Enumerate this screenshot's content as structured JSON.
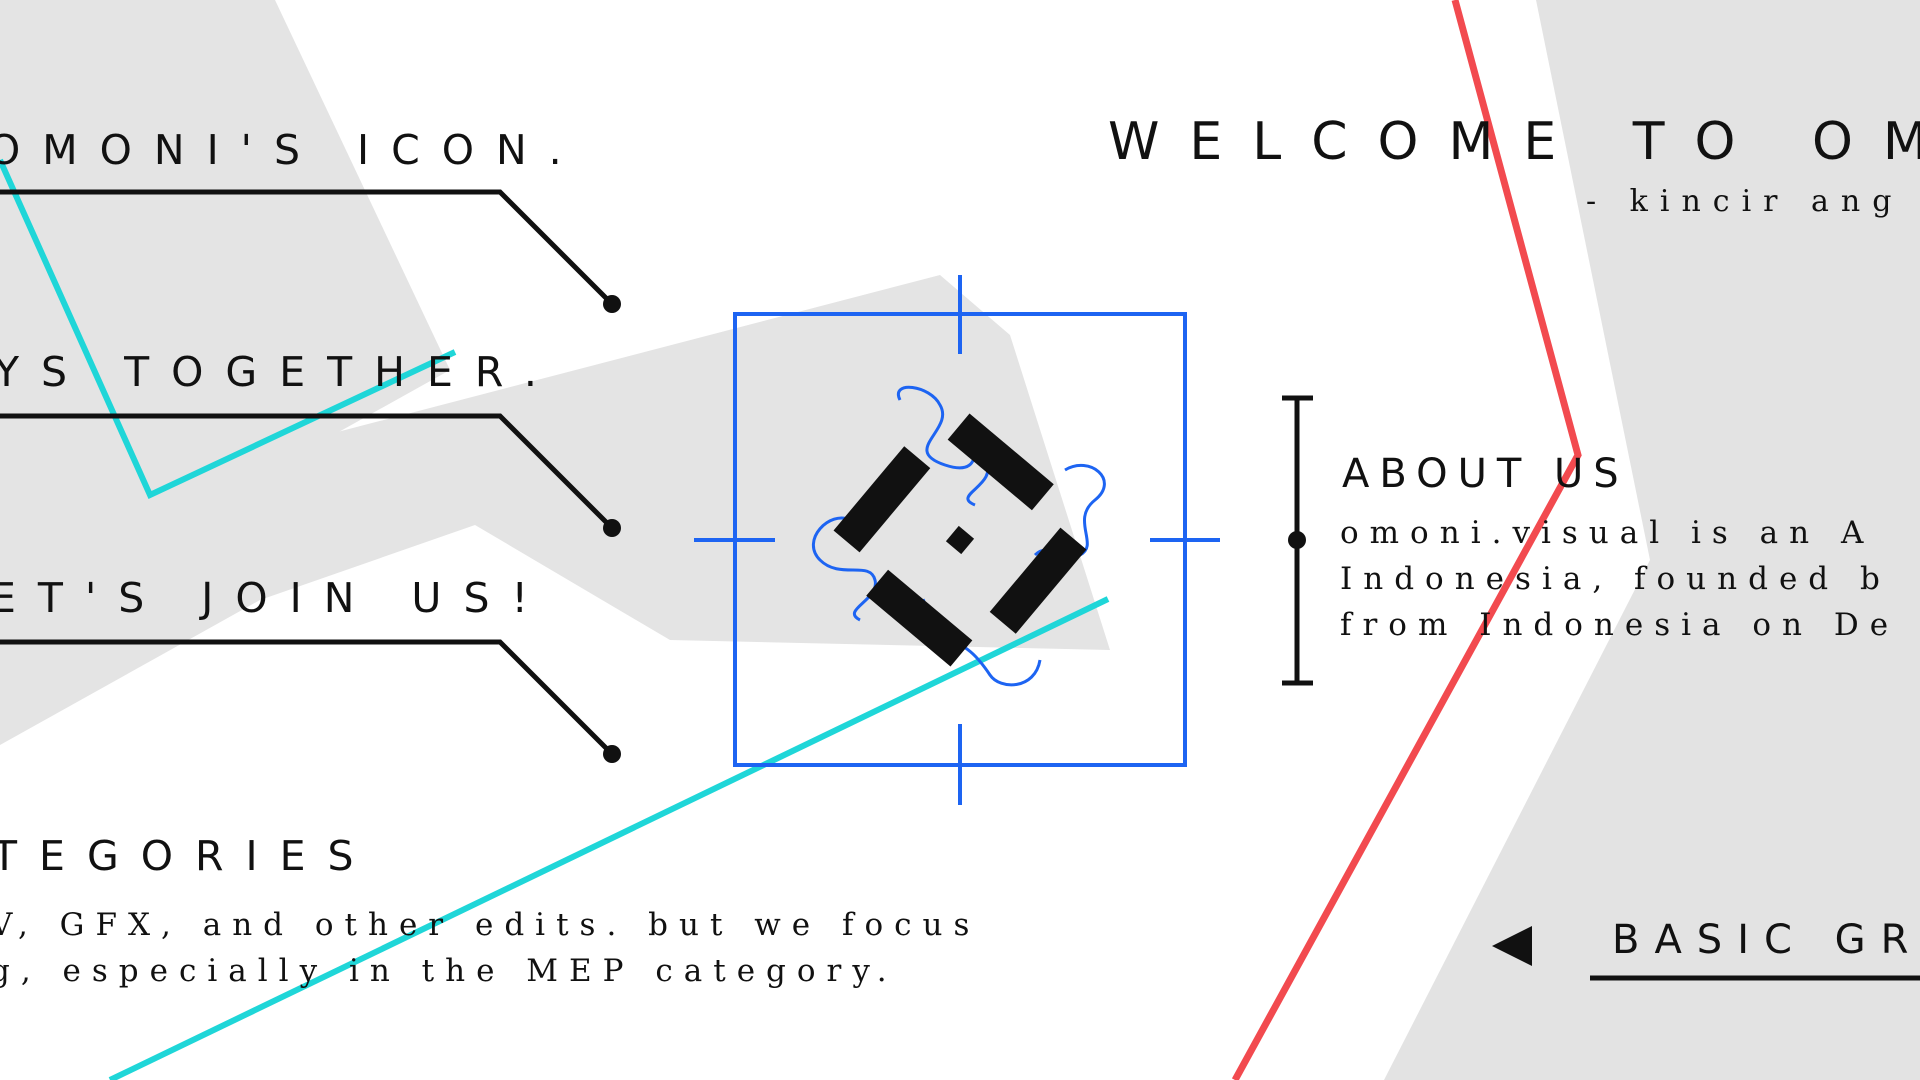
{
  "headings": {
    "icon": "OMONI'S ICON.",
    "together": "YS TOGETHER.",
    "join": "ET'S JOIN US!",
    "categories": "TEGORIES"
  },
  "categories_body": {
    "line1": "V, GFX, and other edits. but we focus",
    "line2": "g, especially in the MEP category."
  },
  "welcome": {
    "title": "WELCOME TO OM",
    "subtitle": "- kincir ang"
  },
  "about": {
    "title": "ABOUT US",
    "line1": "omoni.visual is an A",
    "line2": "Indonesia, founded b",
    "line3": "from Indonesia on De"
  },
  "nav": {
    "prev_icon": "triangle-left-icon",
    "basic_label": "BASIC GR"
  },
  "colors": {
    "accent_red": "#f24a4f",
    "accent_cyan": "#1fd6d8",
    "accent_blue": "#1d64f2",
    "panel_gray": "#e3e3e3",
    "ink": "#111111"
  },
  "icons": {
    "logo": "kincir-angin-logo-icon",
    "frame": "crosshair-frame-icon"
  }
}
